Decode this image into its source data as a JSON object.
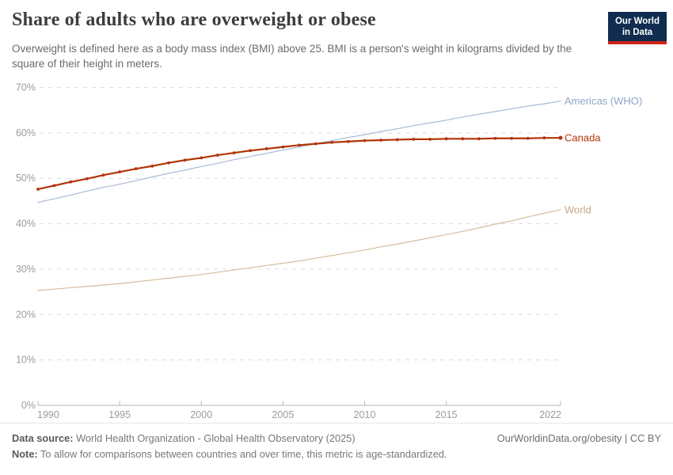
{
  "header": {
    "title": "Share of adults who are overweight or obese",
    "subtitle": "Overweight is defined here as a body mass index (BMI) above 25. BMI is a person's weight in kilograms divided by the square of their height in meters.",
    "logo": {
      "line1": "Our World",
      "line2": "in Data",
      "bg_color": "#102d4f",
      "stripe_color": "#cf2418"
    }
  },
  "chart_data": {
    "type": "line",
    "title": "Share of adults who are overweight or obese",
    "xlabel": "",
    "ylabel": "",
    "ylim": [
      0,
      70
    ],
    "grid": "horizontal-dashed",
    "legend_position": "right-of-lines",
    "ytick_labels": [
      "0%",
      "10%",
      "20%",
      "30%",
      "40%",
      "50%",
      "60%",
      "70%"
    ],
    "ytick_values": [
      0,
      10,
      20,
      30,
      40,
      50,
      60,
      70
    ],
    "xticks": [
      1990,
      1995,
      2000,
      2005,
      2010,
      2015,
      2022
    ],
    "x": [
      1990,
      1991,
      1992,
      1993,
      1994,
      1995,
      1996,
      1997,
      1998,
      1999,
      2000,
      2001,
      2002,
      2003,
      2004,
      2005,
      2006,
      2007,
      2008,
      2009,
      2010,
      2011,
      2012,
      2013,
      2014,
      2015,
      2016,
      2017,
      2018,
      2019,
      2020,
      2021,
      2022
    ],
    "series": [
      {
        "name": "Americas (WHO)",
        "color": "#a9b9d6",
        "label_color": "#8fa5c8",
        "markers": false,
        "values": [
          44.7,
          45.5,
          46.3,
          47.2,
          48.0,
          48.7,
          49.5,
          50.3,
          51.1,
          51.8,
          52.6,
          53.3,
          54.1,
          54.8,
          55.5,
          56.2,
          56.9,
          57.6,
          58.3,
          59.0,
          59.6,
          60.3,
          60.9,
          61.6,
          62.2,
          62.8,
          63.5,
          64.1,
          64.7,
          65.3,
          65.9,
          66.4,
          67.0
        ]
      },
      {
        "name": "Canada",
        "color": "#b13507",
        "label_color": "#b13507",
        "markers": true,
        "values": [
          47.6,
          48.4,
          49.2,
          49.9,
          50.7,
          51.4,
          52.1,
          52.7,
          53.4,
          54.0,
          54.5,
          55.1,
          55.6,
          56.1,
          56.5,
          56.9,
          57.3,
          57.6,
          57.9,
          58.1,
          58.3,
          58.4,
          58.5,
          58.6,
          58.6,
          58.7,
          58.7,
          58.7,
          58.8,
          58.8,
          58.8,
          58.9,
          58.9
        ]
      },
      {
        "name": "World",
        "color": "#d5bd9d",
        "label_color": "#c7a683",
        "markers": false,
        "values": [
          25.3,
          25.6,
          25.9,
          26.2,
          26.5,
          26.8,
          27.2,
          27.6,
          28.0,
          28.4,
          28.8,
          29.3,
          29.8,
          30.3,
          30.8,
          31.3,
          31.8,
          32.4,
          33.0,
          33.6,
          34.2,
          34.9,
          35.5,
          36.2,
          36.9,
          37.6,
          38.3,
          39.1,
          39.9,
          40.6,
          41.5,
          42.3,
          43.1
        ]
      }
    ],
    "colors": {
      "grid": "#dcdcdc",
      "axis": "#b6b6b6",
      "tick_text": "#9b9b9b"
    }
  },
  "footer": {
    "datasource_label": "Data source:",
    "datasource_text": " World Health Organization - Global Health Observatory (2025)",
    "link": "OurWorldinData.org/obesity | CC BY",
    "note_label": "Note:",
    "note_text": " To allow for comparisons between countries and over time, this metric is age-standardized."
  }
}
